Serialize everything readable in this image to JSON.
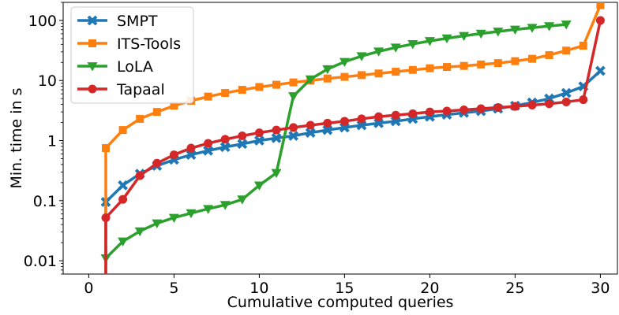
{
  "chart_data": {
    "type": "line",
    "title": "",
    "xlabel": "Cumulative computed queries",
    "ylabel": "Min. time in s",
    "xlim": [
      -1.5,
      31.0
    ],
    "ylim": [
      0.006,
      200
    ],
    "yscale": "log",
    "grid": false,
    "legend_position": "top-left",
    "x_ticks": [
      0,
      5,
      10,
      15,
      20,
      25,
      30
    ],
    "x_tick_labels": [
      "0",
      "5",
      "10",
      "15",
      "20",
      "25",
      "30"
    ],
    "y_ticks": [
      0.01,
      0.1,
      1,
      10,
      100
    ],
    "y_tick_labels": [
      "0.01",
      "0.1",
      "1",
      "10",
      "100"
    ],
    "series": [
      {
        "name": "SMPT",
        "color": "#1f77b4",
        "marker": "x",
        "start_drop": true,
        "x": [
          1,
          2,
          3,
          4,
          5,
          6,
          7,
          8,
          9,
          10,
          11,
          12,
          13,
          14,
          15,
          16,
          17,
          18,
          19,
          20,
          21,
          22,
          23,
          24,
          25,
          26,
          27,
          28,
          29,
          30
        ],
        "y": [
          0.095,
          0.18,
          0.28,
          0.38,
          0.48,
          0.58,
          0.68,
          0.78,
          0.88,
          1.0,
          1.1,
          1.2,
          1.35,
          1.5,
          1.65,
          1.8,
          1.95,
          2.1,
          2.3,
          2.5,
          2.7,
          2.9,
          3.1,
          3.4,
          3.8,
          4.3,
          5.0,
          6.2,
          8.0,
          14.5
        ]
      },
      {
        "name": "ITS-Tools",
        "color": "#ff7f0e",
        "marker": "square",
        "start_drop": true,
        "x": [
          1,
          2,
          3,
          4,
          5,
          6,
          7,
          8,
          9,
          10,
          11,
          12,
          13,
          14,
          15,
          16,
          17,
          18,
          19,
          20,
          21,
          22,
          23,
          24,
          25,
          26,
          27,
          28,
          29,
          30
        ],
        "y": [
          0.75,
          1.5,
          2.3,
          3.0,
          3.8,
          4.6,
          5.4,
          6.2,
          7.0,
          7.8,
          8.5,
          9.3,
          10.0,
          10.8,
          11.5,
          12.3,
          13.1,
          14.0,
          15.0,
          16.0,
          16.8,
          17.5,
          18.5,
          19.5,
          21.0,
          23.0,
          26.5,
          31.5,
          38.0,
          180
        ]
      },
      {
        "name": "LoLA",
        "color": "#2ca02c",
        "marker": "triangle-down",
        "start_drop": false,
        "x": [
          1,
          2,
          3,
          4,
          5,
          6,
          7,
          8,
          9,
          10,
          11,
          12,
          13,
          14,
          15,
          16,
          17,
          18,
          19,
          20,
          21,
          22,
          23,
          24,
          25,
          26,
          27,
          28
        ],
        "y": [
          0.011,
          0.021,
          0.031,
          0.042,
          0.052,
          0.062,
          0.073,
          0.085,
          0.105,
          0.18,
          0.29,
          5.5,
          10.5,
          15.5,
          20.5,
          25.5,
          30.5,
          35.5,
          40.5,
          45.5,
          50.5,
          55.5,
          60.5,
          65.5,
          70.5,
          75.5,
          80.5,
          86.0
        ]
      },
      {
        "name": "Tapaal",
        "color": "#d62728",
        "marker": "circle",
        "start_drop": true,
        "x": [
          1,
          2,
          3,
          4,
          5,
          6,
          7,
          8,
          9,
          10,
          11,
          12,
          13,
          14,
          15,
          16,
          17,
          18,
          19,
          20,
          21,
          22,
          23,
          24,
          25,
          26,
          27,
          28,
          29,
          30
        ],
        "y": [
          0.052,
          0.105,
          0.26,
          0.42,
          0.58,
          0.75,
          0.9,
          1.05,
          1.2,
          1.35,
          1.5,
          1.65,
          1.8,
          1.95,
          2.1,
          2.3,
          2.5,
          2.65,
          2.8,
          3.0,
          3.1,
          3.25,
          3.4,
          3.55,
          3.7,
          3.9,
          4.1,
          4.4,
          4.8,
          100
        ]
      }
    ]
  }
}
